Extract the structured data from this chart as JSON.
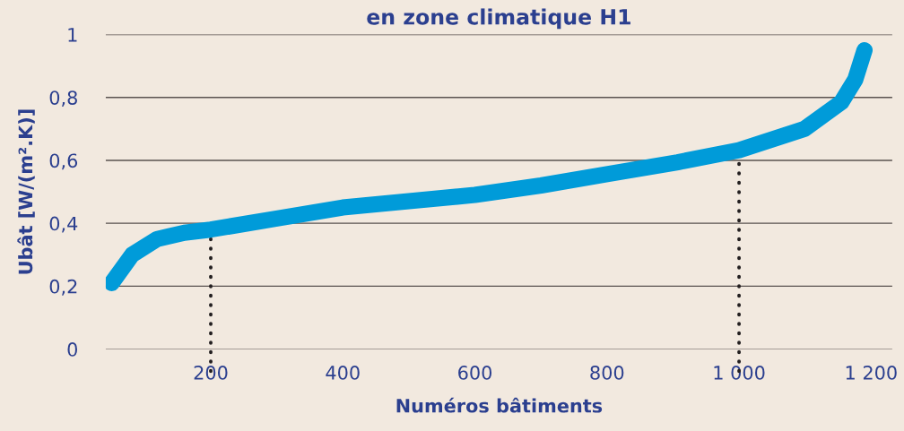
{
  "chart_data": {
    "type": "line",
    "title": "en zone climatique H1",
    "xlabel": "Numéros bâtiments",
    "ylabel": "Ubât [W/(m².K)]",
    "series": [
      {
        "color": "#009bd9",
        "x": [
          50,
          81,
          119,
          160,
          200,
          300,
          400,
          500,
          600,
          700,
          800,
          907,
          1000,
          1099,
          1155,
          1176,
          1190
        ],
        "values": [
          0.21,
          0.3,
          0.35,
          0.37,
          0.38,
          0.415,
          0.45,
          0.47,
          0.49,
          0.52,
          0.556,
          0.594,
          0.632,
          0.7,
          0.785,
          0.857,
          0.95
        ]
      }
    ],
    "xlim": [
      41,
      1232
    ],
    "xticks": [
      200,
      400,
      600,
      800,
      {
        "value": 1000,
        "label": "1 000"
      },
      {
        "value": 1200,
        "label": "1 200"
      }
    ],
    "ylim": [
      0,
      1
    ],
    "yticks": [
      0,
      {
        "value": 0.2,
        "label": "0,2"
      },
      {
        "value": 0.4,
        "label": "0,4"
      },
      {
        "value": 0.6,
        "label": "0,6"
      },
      {
        "value": 0.8,
        "label": "0,8"
      },
      1
    ],
    "grid": "y",
    "legend": false,
    "marker": "none",
    "line_style": "solid",
    "ref_lines": [
      {
        "axis": "x",
        "value": 200,
        "color": "#231f20",
        "line_style": "dotted"
      },
      {
        "axis": "x",
        "value": 1000,
        "color": "#231f20",
        "line_style": "dotted"
      }
    ]
  }
}
